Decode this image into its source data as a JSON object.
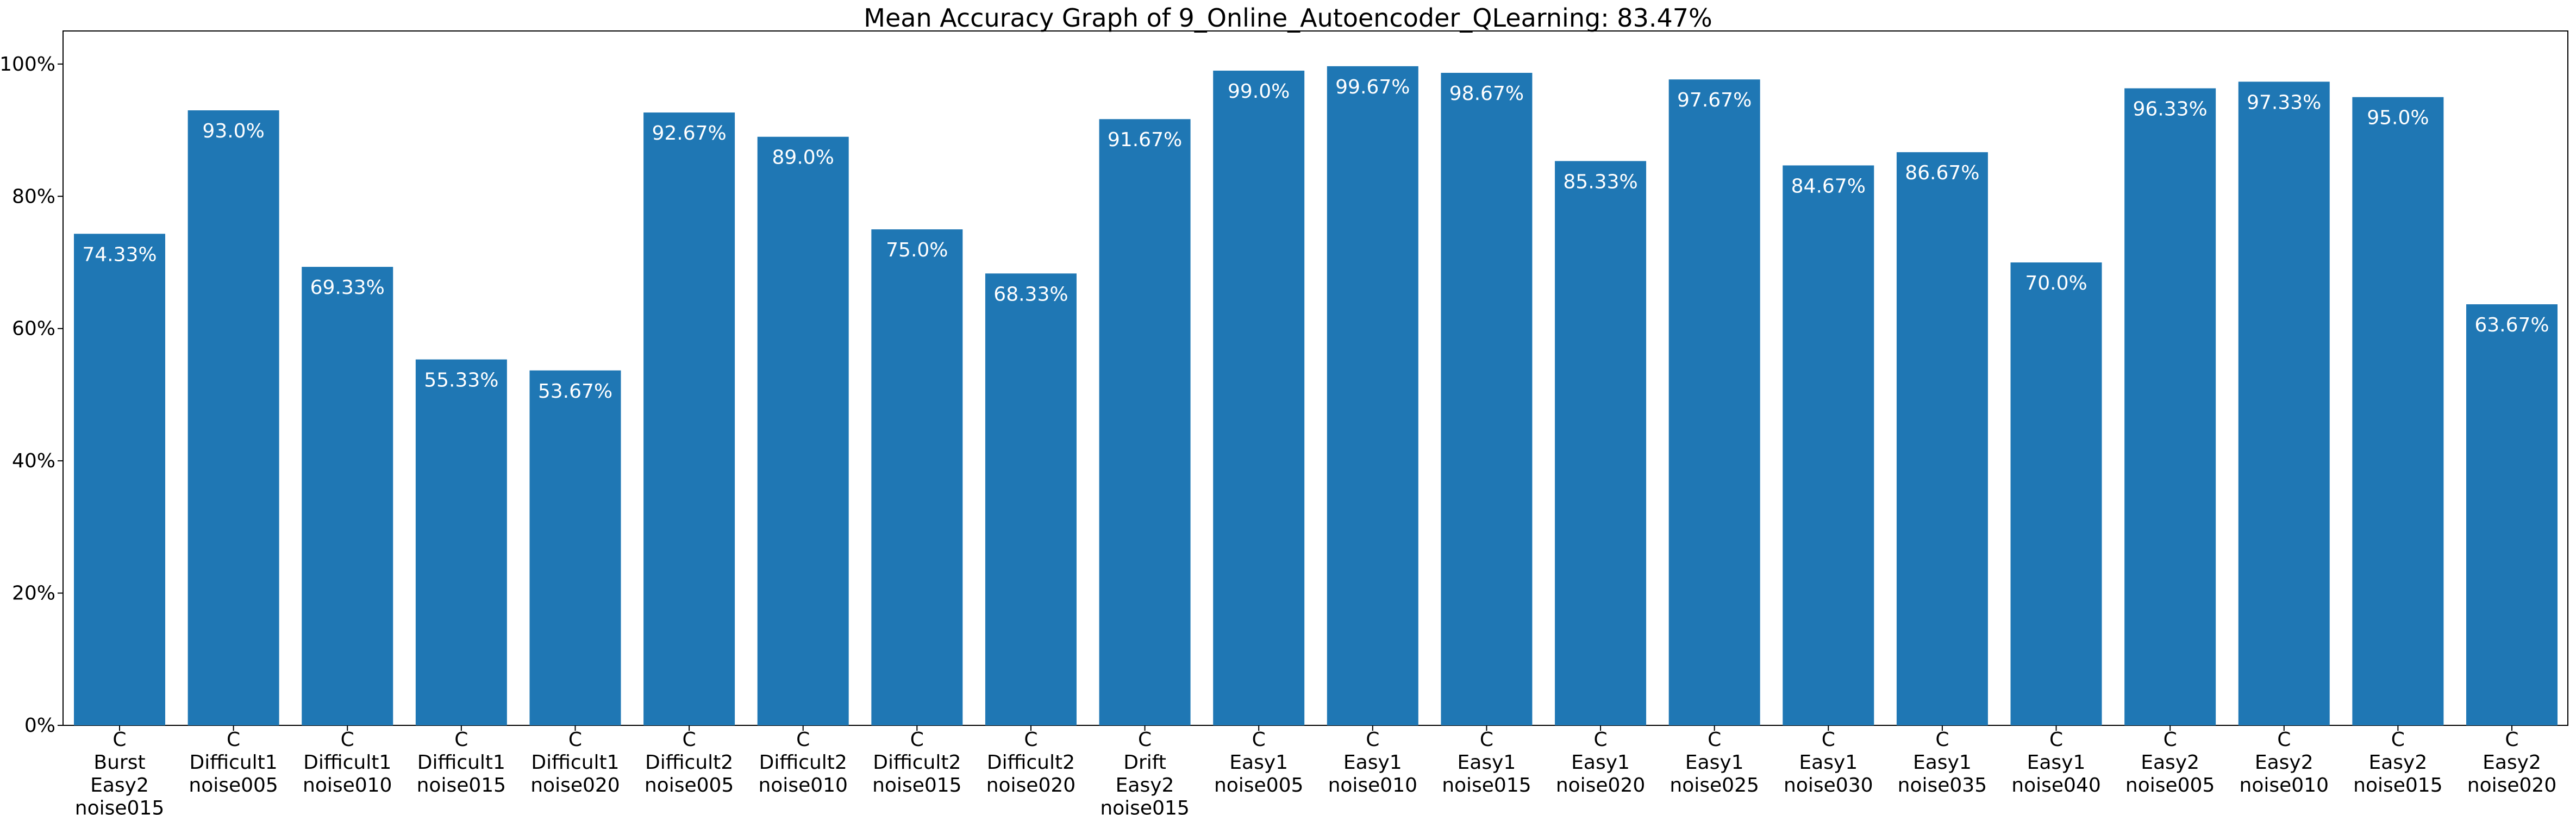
{
  "chart_data": {
    "type": "bar",
    "title": "Mean Accuracy Graph of 9_Online_Autoencoder_QLearning: 83.47%",
    "xlabel": "",
    "ylabel": "",
    "ylim": [
      0,
      105
    ],
    "yticks": [
      "0%",
      "20%",
      "40%",
      "60%",
      "80%",
      "100%"
    ],
    "ytick_values": [
      0,
      20,
      40,
      60,
      80,
      100
    ],
    "bar_color": "#1f77b4",
    "grid": false,
    "categories": [
      [
        "C",
        "Burst",
        "Easy2",
        "noise015"
      ],
      [
        "C",
        "Difficult1",
        "noise005"
      ],
      [
        "C",
        "Difficult1",
        "noise010"
      ],
      [
        "C",
        "Difficult1",
        "noise015"
      ],
      [
        "C",
        "Difficult1",
        "noise020"
      ],
      [
        "C",
        "Difficult2",
        "noise005"
      ],
      [
        "C",
        "Difficult2",
        "noise010"
      ],
      [
        "C",
        "Difficult2",
        "noise015"
      ],
      [
        "C",
        "Difficult2",
        "noise020"
      ],
      [
        "C",
        "Drift",
        "Easy2",
        "noise015"
      ],
      [
        "C",
        "Easy1",
        "noise005"
      ],
      [
        "C",
        "Easy1",
        "noise010"
      ],
      [
        "C",
        "Easy1",
        "noise015"
      ],
      [
        "C",
        "Easy1",
        "noise020"
      ],
      [
        "C",
        "Easy1",
        "noise025"
      ],
      [
        "C",
        "Easy1",
        "noise030"
      ],
      [
        "C",
        "Easy1",
        "noise035"
      ],
      [
        "C",
        "Easy1",
        "noise040"
      ],
      [
        "C",
        "Easy2",
        "noise005"
      ],
      [
        "C",
        "Easy2",
        "noise010"
      ],
      [
        "C",
        "Easy2",
        "noise015"
      ],
      [
        "C",
        "Easy2",
        "noise020"
      ]
    ],
    "values": [
      74.33,
      93.0,
      69.33,
      55.33,
      53.67,
      92.67,
      89.0,
      75.0,
      68.33,
      91.67,
      99.0,
      99.67,
      98.67,
      85.33,
      97.67,
      84.67,
      86.67,
      70.0,
      96.33,
      97.33,
      95.0,
      63.67
    ],
    "data_labels": [
      "74.33%",
      "93.0%",
      "69.33%",
      "55.33%",
      "53.67%",
      "92.67%",
      "89.0%",
      "75.0%",
      "68.33%",
      "91.67%",
      "99.0%",
      "99.67%",
      "98.67%",
      "85.33%",
      "97.67%",
      "84.67%",
      "86.67%",
      "70.0%",
      "96.33%",
      "97.33%",
      "95.0%",
      "63.67%"
    ]
  }
}
